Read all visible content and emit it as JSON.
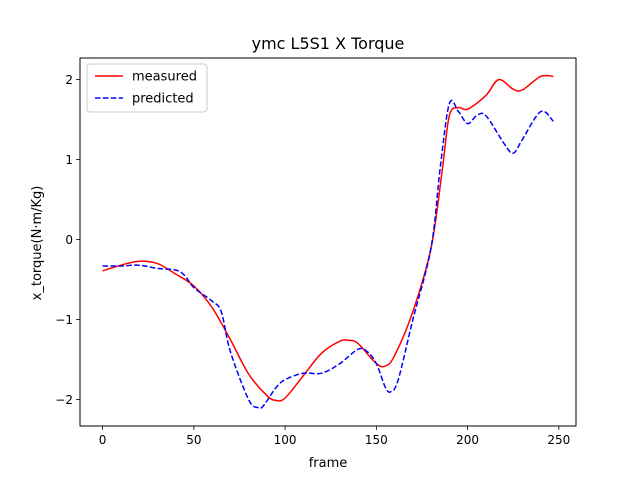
{
  "chart_data": {
    "type": "line",
    "title": "ymc L5S1 X Torque",
    "xlabel": "frame",
    "ylabel": "x_torque(N·m/Kg)",
    "xlim": [
      -12.4,
      259.4
    ],
    "ylim": [
      -2.33,
      2.27
    ],
    "xticks": [
      0,
      50,
      100,
      150,
      200,
      250
    ],
    "yticks": [
      -2,
      -1,
      0,
      1,
      2
    ],
    "grid": false,
    "legend_position": "top-left",
    "series": [
      {
        "name": "measured",
        "color": "#ff0000",
        "dash": "solid",
        "x": [
          0,
          10,
          20,
          30,
          40,
          50,
          60,
          70,
          80,
          90,
          95,
          100,
          110,
          120,
          130,
          135,
          140,
          150,
          155,
          160,
          170,
          180,
          186,
          190,
          195,
          200,
          210,
          217,
          225,
          230,
          240,
          247
        ],
        "y": [
          -0.39,
          -0.32,
          -0.27,
          -0.3,
          -0.43,
          -0.58,
          -0.85,
          -1.25,
          -1.68,
          -1.95,
          -2.01,
          -1.98,
          -1.7,
          -1.42,
          -1.27,
          -1.26,
          -1.3,
          -1.55,
          -1.58,
          -1.45,
          -0.9,
          -0.1,
          0.85,
          1.55,
          1.65,
          1.63,
          1.8,
          2.0,
          1.88,
          1.87,
          2.04,
          2.04
        ]
      },
      {
        "name": "predicted",
        "color": "#0000ff",
        "dash": "dashed",
        "x": [
          0,
          10,
          20,
          30,
          40,
          45,
          50,
          60,
          65,
          70,
          80,
          85,
          88,
          95,
          100,
          110,
          120,
          130,
          140,
          145,
          150,
          155,
          158,
          162,
          170,
          180,
          185,
          190,
          195,
          200,
          205,
          210,
          220,
          225,
          230,
          240,
          247
        ],
        "y": [
          -0.33,
          -0.33,
          -0.32,
          -0.36,
          -0.38,
          -0.45,
          -0.6,
          -0.77,
          -0.9,
          -1.4,
          -2.0,
          -2.1,
          -2.08,
          -1.85,
          -1.75,
          -1.67,
          -1.67,
          -1.55,
          -1.37,
          -1.4,
          -1.55,
          -1.85,
          -1.9,
          -1.75,
          -1.0,
          -0.1,
          0.9,
          1.7,
          1.6,
          1.45,
          1.55,
          1.55,
          1.2,
          1.08,
          1.25,
          1.6,
          1.48
        ]
      }
    ]
  }
}
